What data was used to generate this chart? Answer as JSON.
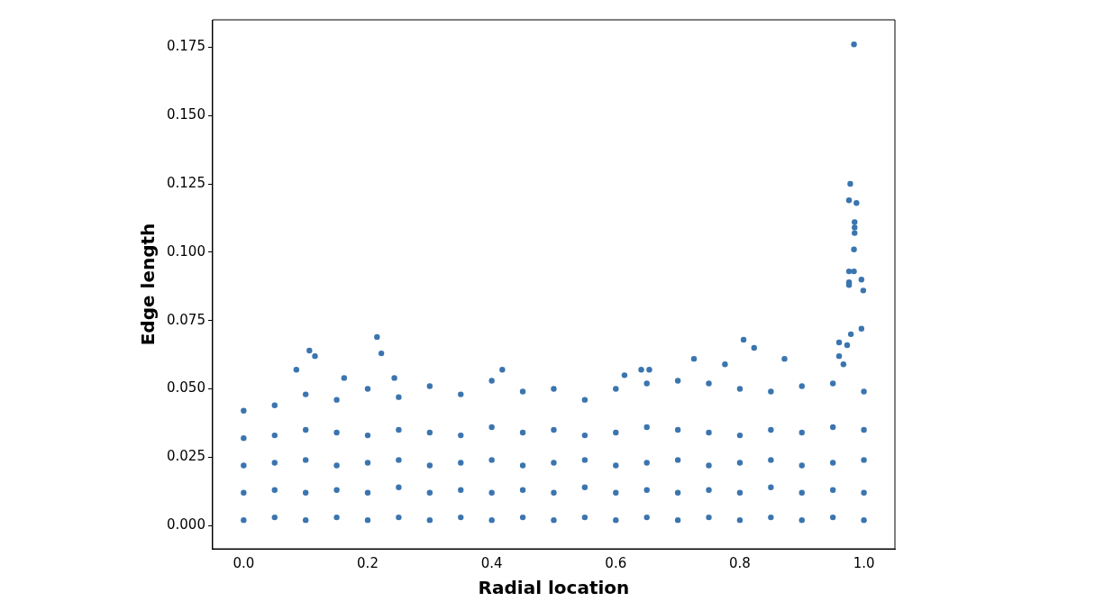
{
  "chart_data": {
    "type": "scatter",
    "xlabel": "Radial location",
    "ylabel": "Edge length",
    "xlim": [
      -0.05,
      1.05
    ],
    "ylim": [
      -0.0085,
      0.185
    ],
    "xticks": [
      {
        "value": 0,
        "label": "0.0"
      },
      {
        "value": 0.2,
        "label": "0.2"
      },
      {
        "value": 0.4,
        "label": "0.4"
      },
      {
        "value": 0.6,
        "label": "0.6"
      },
      {
        "value": 0.8,
        "label": "0.8"
      },
      {
        "value": 1,
        "label": "1.0"
      }
    ],
    "yticks": [
      {
        "value": 0,
        "label": "0.000"
      },
      {
        "value": 0.025,
        "label": "0.025"
      },
      {
        "value": 0.05,
        "label": "0.050"
      },
      {
        "value": 0.075,
        "label": "0.075"
      },
      {
        "value": 0.1,
        "label": "0.100"
      },
      {
        "value": 0.125,
        "label": "0.125"
      },
      {
        "value": 0.15,
        "label": "0.150"
      },
      {
        "value": 0.175,
        "label": "0.175"
      }
    ],
    "grid": false,
    "legend": false,
    "marker": "circle",
    "series": [
      {
        "color": "#3b75af",
        "x": [
          0.984,
          0.978,
          0.976,
          0.988,
          0.985,
          0.985,
          0.985,
          0.984,
          0.976,
          0.984,
          0.976,
          0.976,
          0.996,
          0.999,
          0.996,
          0.979,
          0.96,
          0.973,
          0.96,
          0.967,
          0.806,
          0.823,
          0.872,
          0.726,
          0.614,
          0.641,
          0.654,
          0.776,
          0.215,
          0.222,
          0.106,
          0.115,
          0.085,
          0.417,
          0.243,
          0.162,
          0.0,
          0.0,
          0.0,
          0.0,
          0.0,
          0.05,
          0.05,
          0.05,
          0.05,
          0.05,
          0.1,
          0.1,
          0.1,
          0.1,
          0.1,
          0.15,
          0.15,
          0.15,
          0.15,
          0.15,
          0.2,
          0.2,
          0.2,
          0.2,
          0.2,
          0.25,
          0.25,
          0.25,
          0.25,
          0.25,
          0.3,
          0.3,
          0.3,
          0.3,
          0.3,
          0.35,
          0.35,
          0.35,
          0.35,
          0.35,
          0.4,
          0.4,
          0.4,
          0.4,
          0.4,
          0.45,
          0.45,
          0.45,
          0.45,
          0.45,
          0.5,
          0.5,
          0.5,
          0.5,
          0.5,
          0.55,
          0.55,
          0.55,
          0.55,
          0.55,
          0.6,
          0.6,
          0.6,
          0.6,
          0.6,
          0.65,
          0.65,
          0.65,
          0.65,
          0.65,
          0.7,
          0.7,
          0.7,
          0.7,
          0.7,
          0.75,
          0.75,
          0.75,
          0.75,
          0.75,
          0.8,
          0.8,
          0.8,
          0.8,
          0.8,
          0.85,
          0.85,
          0.85,
          0.85,
          0.85,
          0.9,
          0.9,
          0.9,
          0.9,
          0.9,
          0.95,
          0.95,
          0.95,
          0.95,
          0.95,
          1.0,
          1.0,
          1.0,
          1.0,
          1.0
        ],
        "values": [
          0.176,
          0.125,
          0.119,
          0.118,
          0.111,
          0.109,
          0.107,
          0.101,
          0.093,
          0.093,
          0.089,
          0.088,
          0.09,
          0.086,
          0.072,
          0.07,
          0.067,
          0.066,
          0.062,
          0.059,
          0.068,
          0.065,
          0.061,
          0.061,
          0.055,
          0.057,
          0.057,
          0.059,
          0.069,
          0.063,
          0.064,
          0.062,
          0.057,
          0.057,
          0.054,
          0.054,
          0.002,
          0.012,
          0.022,
          0.032,
          0.042,
          0.003,
          0.013,
          0.023,
          0.033,
          0.044,
          0.002,
          0.012,
          0.024,
          0.035,
          0.048,
          0.003,
          0.013,
          0.022,
          0.034,
          0.046,
          0.002,
          0.012,
          0.023,
          0.033,
          0.05,
          0.003,
          0.014,
          0.024,
          0.035,
          0.047,
          0.002,
          0.012,
          0.022,
          0.034,
          0.051,
          0.003,
          0.013,
          0.023,
          0.033,
          0.048,
          0.002,
          0.012,
          0.024,
          0.036,
          0.053,
          0.003,
          0.013,
          0.022,
          0.034,
          0.049,
          0.002,
          0.012,
          0.023,
          0.035,
          0.05,
          0.003,
          0.014,
          0.024,
          0.033,
          0.046,
          0.002,
          0.012,
          0.022,
          0.034,
          0.05,
          0.003,
          0.013,
          0.023,
          0.036,
          0.052,
          0.002,
          0.012,
          0.024,
          0.035,
          0.053,
          0.003,
          0.013,
          0.022,
          0.034,
          0.052,
          0.002,
          0.012,
          0.023,
          0.033,
          0.05,
          0.003,
          0.014,
          0.024,
          0.035,
          0.049,
          0.002,
          0.012,
          0.022,
          0.034,
          0.051,
          0.003,
          0.013,
          0.023,
          0.036,
          0.052,
          0.002,
          0.012,
          0.024,
          0.035,
          0.049
        ]
      }
    ]
  }
}
